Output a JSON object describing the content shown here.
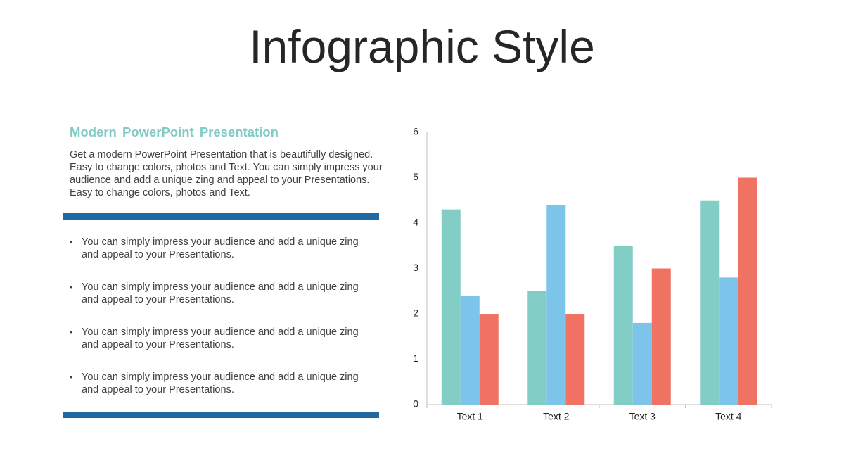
{
  "title": "Infographic Style",
  "heading": "Modern  PowerPoint  Presentation",
  "paragraph": "Get a modern PowerPoint  Presentation that is beautifully designed. Easy to change colors, photos and Text. You can simply impress your audience and add a unique zing and appeal to your Presentations. Easy to change colors, photos and Text.",
  "bullets": [
    "You can simply impress your audience and add a unique zing and appeal to your Presentations.",
    "You can simply impress your audience and add a unique zing and appeal to your Presentations.",
    "You can simply impress your audience and add a unique zing and appeal to your Presentations.",
    "You can simply impress your audience and add a unique zing and appeal to your Presentations."
  ],
  "chart_data": {
    "type": "bar",
    "categories": [
      "Text 1",
      "Text 2",
      "Text 3",
      "Text 4"
    ],
    "series": [
      {
        "color": "#82cdc6",
        "values": [
          4.3,
          2.5,
          3.5,
          4.5
        ]
      },
      {
        "color": "#7cc4ea",
        "values": [
          2.4,
          4.4,
          1.8,
          2.8
        ]
      },
      {
        "color": "#f07262",
        "values": [
          2,
          2,
          3,
          5
        ]
      }
    ],
    "ylim": [
      0,
      6
    ],
    "yticks": [
      0,
      1,
      2,
      3,
      4,
      5,
      6
    ],
    "grid": false
  }
}
